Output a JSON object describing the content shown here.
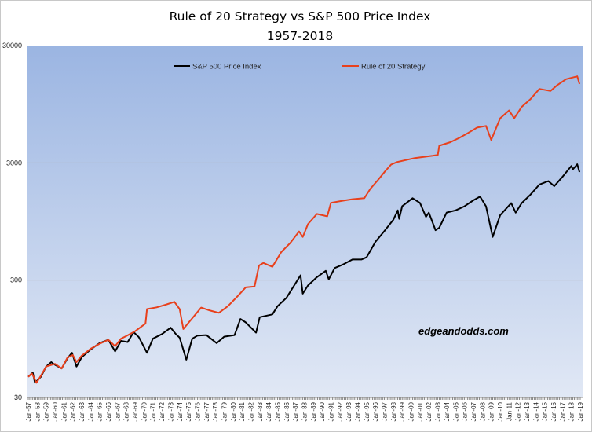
{
  "chart_data": {
    "type": "line",
    "title": "Rule of 20 Strategy vs S&P 500 Price Index",
    "subtitle": "1957-2018",
    "xlabel": "",
    "ylabel": "",
    "y_scale": "log",
    "ylim": [
      30,
      30000
    ],
    "y_ticks": [
      "30000",
      "3000",
      "300",
      "30"
    ],
    "y_tick_values": [
      30000,
      3000,
      300,
      30
    ],
    "x_range": [
      "1957-01",
      "2019-01"
    ],
    "x_ticks": [
      "Jan-57",
      "Jan-58",
      "Jan-59",
      "Jan-60",
      "Jan-61",
      "Jan-62",
      "Jan-63",
      "Jan-64",
      "Jan-65",
      "Jan-66",
      "Jan-67",
      "Jan-68",
      "Jan-69",
      "Jan-70",
      "Jan-71",
      "Jan-72",
      "Jan-73",
      "Jan-74",
      "Jan-75",
      "Jan-76",
      "Jan-77",
      "Jan-78",
      "Jan-79",
      "Jan-80",
      "Jan-81",
      "Jan-82",
      "Jan-83",
      "Jan-84",
      "Jan-85",
      "Jan-86",
      "Jan-87",
      "Jan-88",
      "Jan-89",
      "Jan-90",
      "Jan-91",
      "Jan-92",
      "Jan-93",
      "Jan-94",
      "Jan-95",
      "Jan-96",
      "Jan-97",
      "Jan-98",
      "Jan-99",
      "Jan-00",
      "Jan-01",
      "Jan-02",
      "Jan-03",
      "Jan-04",
      "Jan-05",
      "Jan-06",
      "Jan-07",
      "Jan-08",
      "Jan-09",
      "Jan-10",
      "Jan-11",
      "Jan-12",
      "Jan-13",
      "Jan-14",
      "Jan-15",
      "Jan-16",
      "Jan-17",
      "Jan-18",
      "Jan-19"
    ],
    "grid": "horizontal major lines",
    "legend_position": "top",
    "annotation": "edgeandodds.com",
    "series": [
      {
        "name": "S&P 500 Price Index",
        "color": "#000000",
        "x": [
          "1957-01",
          "1957-07",
          "1957-10",
          "1958-06",
          "1959-01",
          "1959-08",
          "1960-01",
          "1960-10",
          "1961-06",
          "1961-12",
          "1962-06",
          "1963-01",
          "1964-01",
          "1965-01",
          "1966-01",
          "1966-10",
          "1967-06",
          "1968-03",
          "1968-11",
          "1969-06",
          "1970-05",
          "1971-01",
          "1972-01",
          "1973-01",
          "1973-08",
          "1974-01",
          "1974-10",
          "1975-06",
          "1976-01",
          "1977-01",
          "1978-03",
          "1979-01",
          "1980-03",
          "1980-11",
          "1981-06",
          "1982-08",
          "1983-01",
          "1984-06",
          "1985-01",
          "1986-01",
          "1987-08",
          "1987-11",
          "1988-06",
          "1989-06",
          "1990-06",
          "1990-10",
          "1991-06",
          "1992-06",
          "1993-06",
          "1994-06",
          "1995-01",
          "1996-01",
          "1997-01",
          "1998-01",
          "1998-07",
          "1998-09",
          "1999-01",
          "2000-03",
          "2001-01",
          "2001-09",
          "2002-01",
          "2002-10",
          "2003-03",
          "2004-01",
          "2005-01",
          "2006-01",
          "2007-01",
          "2007-10",
          "2008-06",
          "2009-03",
          "2010-01",
          "2011-04",
          "2011-10",
          "2012-06",
          "2013-06",
          "2014-06",
          "2015-06",
          "2016-02",
          "2017-01",
          "2018-01",
          "2018-03",
          "2018-09",
          "2018-12"
        ],
        "values": [
          45,
          49,
          40,
          45,
          55,
          60,
          57,
          53,
          65,
          72,
          55,
          66,
          77,
          87,
          93,
          74,
          91,
          89,
          108,
          98,
          72,
          95,
          104,
          118,
          104,
          97,
          63,
          95,
          101,
          102,
          87,
          99,
          102,
          140,
          131,
          107,
          145,
          153,
          180,
          212,
          330,
          230,
          270,
          318,
          360,
          305,
          380,
          410,
          450,
          450,
          470,
          636,
          786,
          980,
          1180,
          1000,
          1280,
          1500,
          1366,
          1040,
          1130,
          800,
          840,
          1131,
          1181,
          1280,
          1438,
          1550,
          1280,
          700,
          1073,
          1360,
          1130,
          1360,
          1610,
          1960,
          2100,
          1900,
          2279,
          2823,
          2640,
          2920,
          2500
        ]
      },
      {
        "name": "Rule of 20 Strategy",
        "color": "#e8401c",
        "x": [
          "1957-01",
          "1957-06",
          "1957-12",
          "1958-06",
          "1959-01",
          "1960-01",
          "1960-10",
          "1961-06",
          "1962-01",
          "1962-06",
          "1963-01",
          "1964-01",
          "1965-01",
          "1966-01",
          "1966-10",
          "1967-06",
          "1968-01",
          "1969-01",
          "1970-03",
          "1970-05",
          "1971-06",
          "1972-06",
          "1973-06",
          "1974-01",
          "1974-06",
          "1975-01",
          "1976-06",
          "1977-06",
          "1978-06",
          "1979-06",
          "1980-06",
          "1981-06",
          "1982-06",
          "1982-12",
          "1983-06",
          "1984-06",
          "1985-06",
          "1986-06",
          "1987-06",
          "1987-11",
          "1988-06",
          "1989-06",
          "1990-08",
          "1991-01",
          "1992-06",
          "1993-06",
          "1994-10",
          "1995-06",
          "1996-06",
          "1997-01",
          "1997-10",
          "1998-06",
          "2000-06",
          "2002-06",
          "2003-01",
          "2003-03",
          "2004-06",
          "2005-06",
          "2006-06",
          "2007-06",
          "2008-06",
          "2009-01",
          "2010-01",
          "2011-01",
          "2011-08",
          "2012-06",
          "2013-06",
          "2014-06",
          "2015-09",
          "2016-06",
          "2017-06",
          "2018-09",
          "2018-12"
        ],
        "values": [
          45,
          48,
          40,
          46,
          55,
          58,
          53,
          66,
          69,
          60,
          68,
          78,
          86,
          93,
          82,
          95,
          100,
          110,
          128,
          170,
          176,
          185,
          196,
          170,
          115,
          130,
          175,
          165,
          158,
          180,
          215,
          260,
          265,
          400,
          420,
          390,
          520,
          620,
          780,
          700,
          900,
          1100,
          1050,
          1370,
          1430,
          1470,
          1500,
          1800,
          2200,
          2500,
          2900,
          3050,
          3300,
          3450,
          3500,
          4200,
          4500,
          4900,
          5400,
          6000,
          6200,
          4700,
          7200,
          8400,
          7200,
          9000,
          10500,
          12800,
          12300,
          13800,
          15500,
          16400,
          14100
        ]
      }
    ]
  }
}
